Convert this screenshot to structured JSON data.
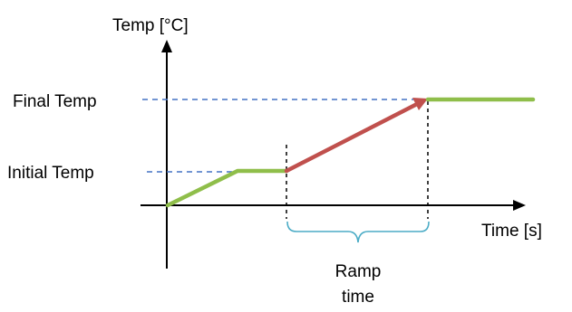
{
  "labels": {
    "y_axis": "Temp [°C]",
    "x_axis": "Time [s]",
    "final_temp": "Final Temp",
    "initial_temp": "Initial Temp",
    "ramp_time_line1": "Ramp",
    "ramp_time_line2": "time"
  },
  "colors": {
    "axis": "#000000",
    "reference_dashed": "#4472c4",
    "marker_dashed": "#000000",
    "hold_segment": "#8fbe4a",
    "ramp_segment": "#c0504d",
    "brace": "#4bacc6"
  }
}
